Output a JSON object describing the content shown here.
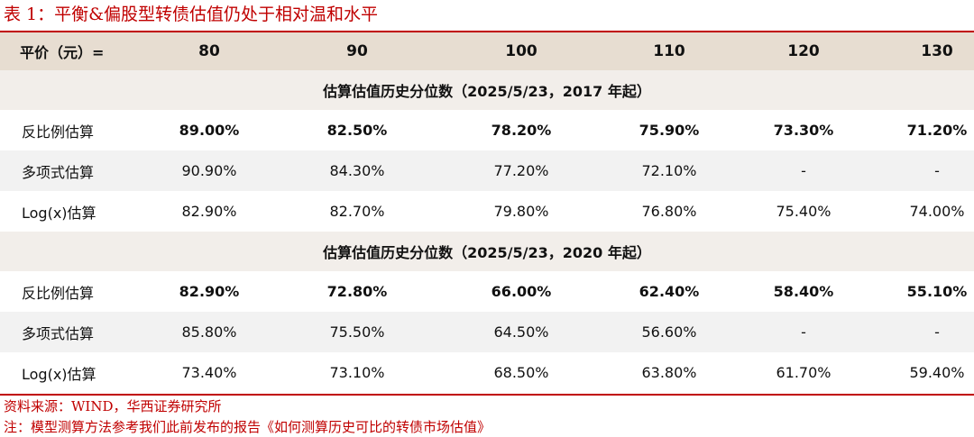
{
  "title": "表 1：平衡&偏股型转债估值仍处于相对温和水平",
  "header": {
    "label": "平价（元）=",
    "columns": [
      "80",
      "90",
      "100",
      "110",
      "120",
      "130"
    ]
  },
  "sections": [
    {
      "heading": "估算估值历史分位数（2025/5/23，2017 年起）",
      "rows": [
        {
          "label": "反比例估算",
          "values": [
            "89.00%",
            "82.50%",
            "78.20%",
            "75.90%",
            "73.30%",
            "71.20%"
          ]
        },
        {
          "label": "多项式估算",
          "values": [
            "90.90%",
            "84.30%",
            "77.20%",
            "72.10%",
            "-",
            "-"
          ]
        },
        {
          "label": "Log(x)估算",
          "values": [
            "82.90%",
            "82.70%",
            "79.80%",
            "76.80%",
            "75.40%",
            "74.00%"
          ]
        }
      ]
    },
    {
      "heading": "估算估值历史分位数（2025/5/23，2020 年起）",
      "rows": [
        {
          "label": "反比例估算",
          "values": [
            "82.90%",
            "72.80%",
            "66.00%",
            "62.40%",
            "58.40%",
            "55.10%"
          ]
        },
        {
          "label": "多项式估算",
          "values": [
            "85.80%",
            "75.50%",
            "64.50%",
            "56.60%",
            "-",
            "-"
          ]
        },
        {
          "label": "Log(x)估算",
          "values": [
            "73.40%",
            "73.10%",
            "68.50%",
            "63.80%",
            "61.70%",
            "59.40%"
          ]
        }
      ]
    }
  ],
  "source": "资料来源：WIND，华西证券研究所",
  "note": "注：模型测算方法参考我们此前发布的报告《如何测算历史可比的转债市场估值》",
  "colors": {
    "accent": "#c00000",
    "header_bg": "#e7ddd1",
    "section_bg": "#f2eeea",
    "shaded_row_bg": "#f2f2f2"
  }
}
